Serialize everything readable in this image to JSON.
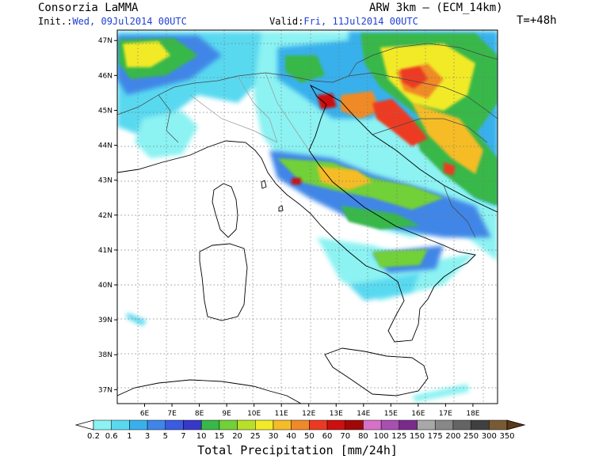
{
  "header": {
    "org": "Consorzia LaMMA",
    "model": "ARW 3km – (ECM_14km)",
    "init_label": "Init.:",
    "init_value": "Wed, 09Jul2014 00UTC",
    "valid_label": "Valid:",
    "valid_value": "Fri, 11Jul2014 00UTC",
    "forecast_step": "T=+48h"
  },
  "map": {
    "lat_labels": [
      "47N",
      "46N",
      "45N",
      "44N",
      "43N",
      "42N",
      "41N",
      "40N",
      "39N",
      "38N",
      "37N"
    ],
    "lon_labels": [
      "6E",
      "7E",
      "8E",
      "9E",
      "10E",
      "11E",
      "12E",
      "13E",
      "14E",
      "15E",
      "16E",
      "17E",
      "18E"
    ],
    "lat_range": [
      36.6,
      47.3
    ],
    "lon_range": [
      5.0,
      18.9
    ]
  },
  "colorbar": {
    "title": "Total Precipitation [mm/24h]",
    "labels": [
      "0.2",
      "0.6",
      "1",
      "3",
      "5",
      "7",
      "10",
      "15",
      "20",
      "25",
      "30",
      "40",
      "50",
      "60",
      "70",
      "80",
      "100",
      "125",
      "150",
      "175",
      "200",
      "250",
      "300",
      "350"
    ],
    "colors": [
      "#ffffff",
      "#8cf2f2",
      "#58d9f0",
      "#39b0ec",
      "#3f86e8",
      "#3b5ce0",
      "#3838c8",
      "#38b848",
      "#72d038",
      "#b8e028",
      "#f2ea28",
      "#f5bc28",
      "#f08a28",
      "#ec3a22",
      "#cc1010",
      "#a00808",
      "#d870c8",
      "#a850b0",
      "#7a2a8c",
      "#a8a8a8",
      "#888888",
      "#646464",
      "#404040",
      "#7a5a34",
      "#5a3818"
    ]
  }
}
